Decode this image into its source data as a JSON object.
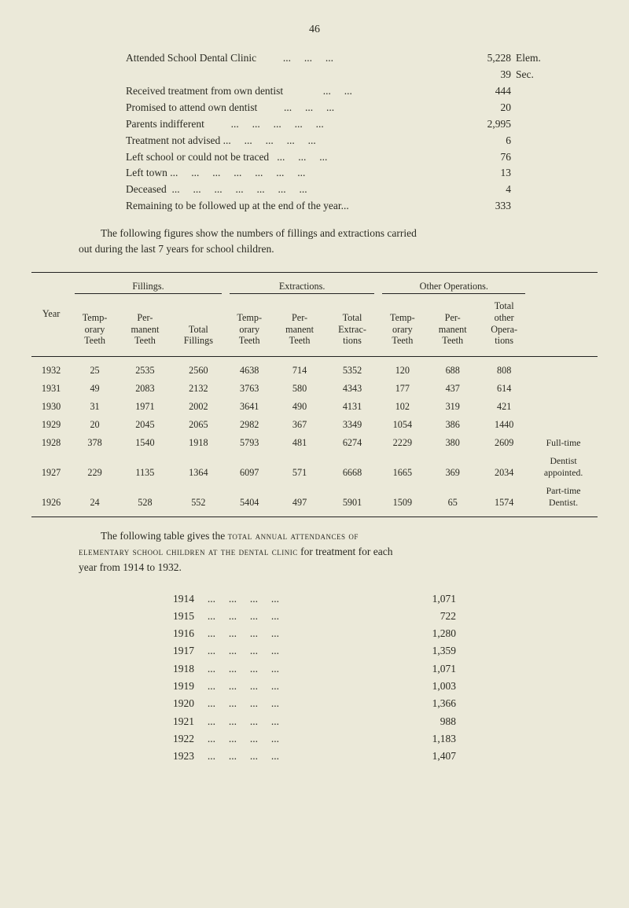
{
  "page_number": "46",
  "stats": [
    {
      "label": "Attended School Dental Clinic          ...     ...     ...",
      "value": "5,228",
      "note": "Elem."
    },
    {
      "label": "",
      "value": "39",
      "note": "Sec."
    },
    {
      "label": "Received treatment from own dentist               ...     ...",
      "value": "444",
      "note": ""
    },
    {
      "label": "Promised to attend own dentist          ...     ...     ...",
      "value": "20",
      "note": ""
    },
    {
      "label": "Parents indifferent          ...     ...     ...     ...     ...",
      "value": "2,995",
      "note": ""
    },
    {
      "label": "Treatment not advised ...     ...     ...     ...     ...",
      "value": "6",
      "note": ""
    },
    {
      "label": "Left school or could not be traced   ...     ...     ...",
      "value": "76",
      "note": ""
    },
    {
      "label": "Left town ...     ...     ...     ...     ...     ...     ...",
      "value": "13",
      "note": ""
    },
    {
      "label": "Deceased  ...     ...     ...     ...     ...     ...     ...",
      "value": "4",
      "note": ""
    },
    {
      "label": "Remaining to be followed up at the end of the year...",
      "value": "333",
      "note": ""
    }
  ],
  "para1_a": "The following figures show the numbers of fillings and extractions carried",
  "para1_b": "out during the last 7 years for school children.",
  "table": {
    "groups": [
      "Fillings.",
      "Extractions.",
      "Other Operations."
    ],
    "cols": [
      "Year",
      "Temp-\norary\nTeeth",
      "Per-\nmanent\nTeeth",
      "Total\nFillings",
      "Temp-\norary\nTeeth",
      "Per-\nmanent\nTeeth",
      "Total\nExtrac-\ntions",
      "Temp-\norary\nTeeth",
      "Per-\nmanent\nTeeth",
      "Total\nother\nOpera-\ntions",
      ""
    ],
    "rows": [
      [
        "1932",
        "25",
        "2535",
        "2560",
        "4638",
        "714",
        "5352",
        "120",
        "688",
        "808",
        ""
      ],
      [
        "1931",
        "49",
        "2083",
        "2132",
        "3763",
        "580",
        "4343",
        "177",
        "437",
        "614",
        ""
      ],
      [
        "1930",
        "31",
        "1971",
        "2002",
        "3641",
        "490",
        "4131",
        "102",
        "319",
        "421",
        ""
      ],
      [
        "1929",
        "20",
        "2045",
        "2065",
        "2982",
        "367",
        "3349",
        "1054",
        "386",
        "1440",
        ""
      ],
      [
        "1928",
        "378",
        "1540",
        "1918",
        "5793",
        "481",
        "6274",
        "2229",
        "380",
        "2609",
        "Full-time"
      ],
      [
        "1927",
        "229",
        "1135",
        "1364",
        "6097",
        "571",
        "6668",
        "1665",
        "369",
        "2034",
        "Dentist\nappointed."
      ],
      [
        "1926",
        "24",
        "528",
        "552",
        "5404",
        "497",
        "5901",
        "1509",
        "65",
        "1574",
        "Part-time\nDentist."
      ]
    ]
  },
  "para2_a": "The  following  table  gives  the  ",
  "para2_sc": "total  annual  attendances  of",
  "para2_b": "elementary school children at the dental clinic",
  "para2_c": " for treatment for each",
  "para2_d": "year from 1914 to 1932.",
  "years": [
    {
      "y": "1914",
      "dots": "     ...     ...     ...     ...",
      "v": "1,071"
    },
    {
      "y": "1915",
      "dots": "     ...     ...     ...     ...",
      "v": "722"
    },
    {
      "y": "1916",
      "dots": "     ...     ...     ...     ...",
      "v": "1,280"
    },
    {
      "y": "1917",
      "dots": "     ...     ...     ...     ...",
      "v": "1,359"
    },
    {
      "y": "1918",
      "dots": "     ...     ...     ...     ...",
      "v": "1,071"
    },
    {
      "y": "1919",
      "dots": "     ...     ...     ...     ...",
      "v": "1,003"
    },
    {
      "y": "1920",
      "dots": "     ...     ...     ...     ...",
      "v": "1,366"
    },
    {
      "y": "1921",
      "dots": "     ...     ...     ...     ...",
      "v": "988"
    },
    {
      "y": "1922",
      "dots": "     ...     ...     ...     ...",
      "v": "1,183"
    },
    {
      "y": "1923",
      "dots": "     ...     ...     ...     ...",
      "v": "1,407"
    }
  ]
}
